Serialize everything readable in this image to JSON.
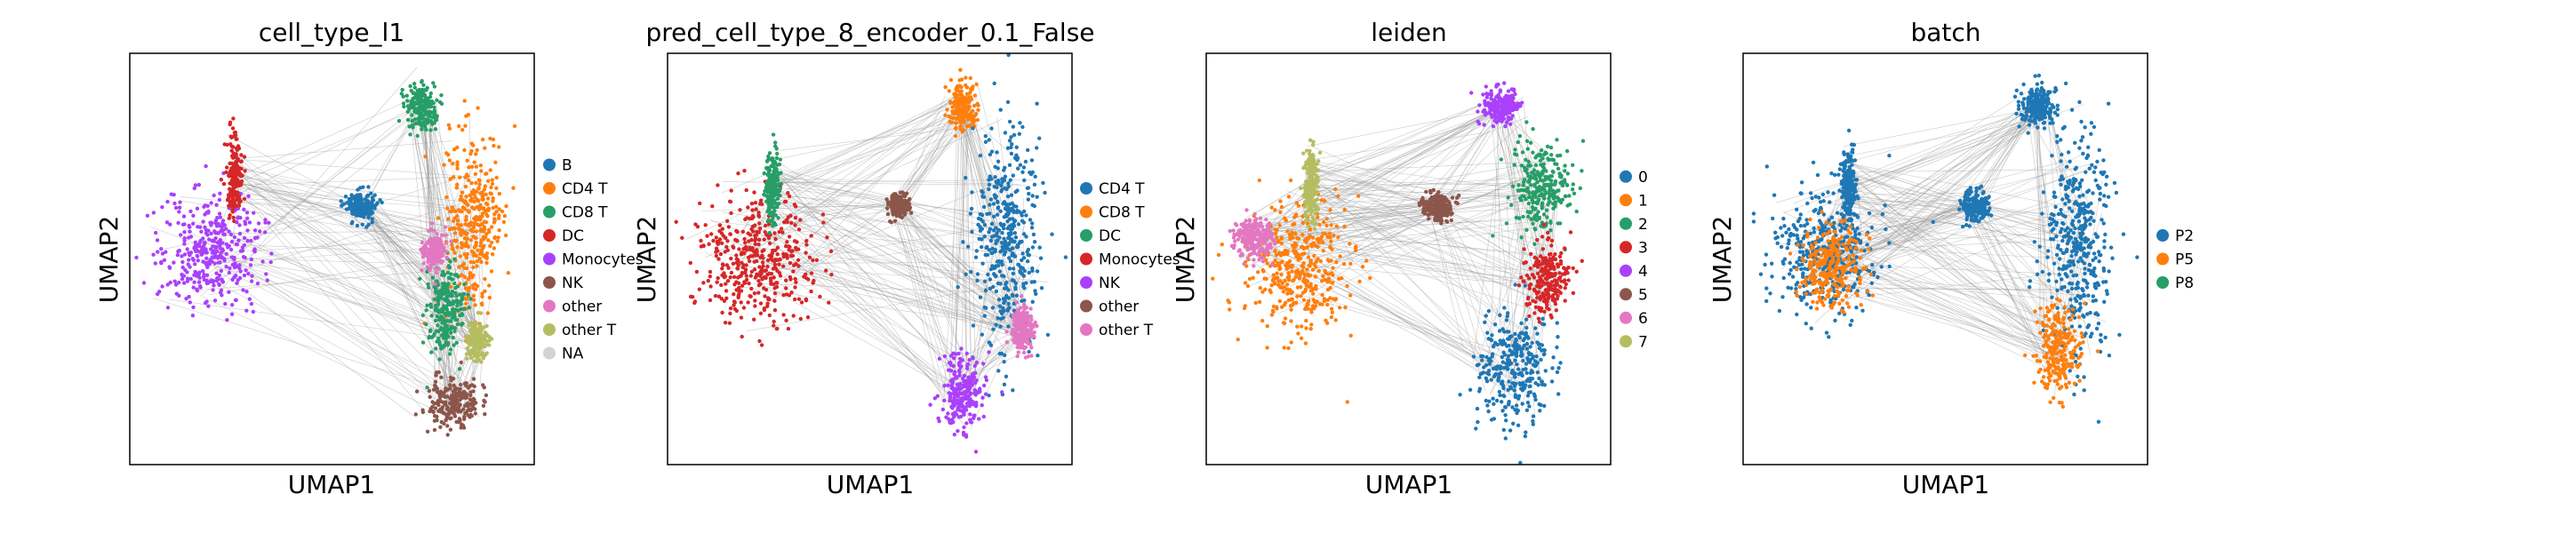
{
  "figure": {
    "description_free": true
  },
  "chart_data": [
    {
      "type": "scatter",
      "title": "cell_type_l1",
      "xlabel": "UMAP1",
      "ylabel": "UMAP2",
      "legend": [
        "B",
        "CD4 T",
        "CD8 T",
        "DC",
        "Monocytes",
        "NK",
        "other",
        "other T",
        "NA"
      ],
      "colors": [
        "#1f77b4",
        "#ff7f0e",
        "#279e68",
        "#d62728",
        "#aa40fc",
        "#8c564b",
        "#e377c2",
        "#b5bd61",
        "#d3d3d3"
      ],
      "legend_placement": "right",
      "grid": false,
      "axis_ticks": false,
      "clusters": [
        {
          "group": 4,
          "cx": 0.2,
          "cy": 0.48,
          "rx": 0.14,
          "ry": 0.16
        },
        {
          "group": 3,
          "cx": 0.26,
          "cy": 0.3,
          "rx": 0.02,
          "ry": 0.1
        },
        {
          "group": 0,
          "cx": 0.57,
          "cy": 0.37,
          "rx": 0.04,
          "ry": 0.04
        },
        {
          "group": 2,
          "cx": 0.72,
          "cy": 0.13,
          "rx": 0.04,
          "ry": 0.06
        },
        {
          "group": 1,
          "cx": 0.85,
          "cy": 0.42,
          "rx": 0.08,
          "ry": 0.25
        },
        {
          "group": 2,
          "cx": 0.78,
          "cy": 0.62,
          "rx": 0.05,
          "ry": 0.12
        },
        {
          "group": 6,
          "cx": 0.75,
          "cy": 0.48,
          "rx": 0.03,
          "ry": 0.05
        },
        {
          "group": 7,
          "cx": 0.86,
          "cy": 0.7,
          "rx": 0.03,
          "ry": 0.05
        },
        {
          "group": 5,
          "cx": 0.8,
          "cy": 0.85,
          "rx": 0.07,
          "ry": 0.07
        }
      ]
    },
    {
      "type": "scatter",
      "title": "pred_cell_type_8_encoder_0.1_False",
      "xlabel": "UMAP1",
      "ylabel": "UMAP2",
      "legend": [
        "CD4 T",
        "CD8 T",
        "DC",
        "Monocytes",
        "NK",
        "other",
        "other T"
      ],
      "colors": [
        "#1f77b4",
        "#ff7f0e",
        "#279e68",
        "#d62728",
        "#aa40fc",
        "#8c564b",
        "#e377c2"
      ],
      "legend_placement": "right",
      "grid": false,
      "axis_ticks": false,
      "clusters": [
        {
          "group": 3,
          "cx": 0.22,
          "cy": 0.5,
          "rx": 0.16,
          "ry": 0.17
        },
        {
          "group": 2,
          "cx": 0.26,
          "cy": 0.33,
          "rx": 0.02,
          "ry": 0.1
        },
        {
          "group": 5,
          "cx": 0.57,
          "cy": 0.37,
          "rx": 0.03,
          "ry": 0.03
        },
        {
          "group": 1,
          "cx": 0.73,
          "cy": 0.13,
          "rx": 0.04,
          "ry": 0.06
        },
        {
          "group": 0,
          "cx": 0.84,
          "cy": 0.45,
          "rx": 0.09,
          "ry": 0.3
        },
        {
          "group": 4,
          "cx": 0.73,
          "cy": 0.82,
          "rx": 0.06,
          "ry": 0.1
        },
        {
          "group": 6,
          "cx": 0.88,
          "cy": 0.67,
          "rx": 0.03,
          "ry": 0.06
        }
      ]
    },
    {
      "type": "scatter",
      "title": "leiden",
      "xlabel": "UMAP1",
      "ylabel": "UMAP2",
      "legend": [
        "0",
        "1",
        "2",
        "3",
        "4",
        "5",
        "6",
        "7"
      ],
      "colors": [
        "#1f77b4",
        "#ff7f0e",
        "#279e68",
        "#d62728",
        "#aa40fc",
        "#8c564b",
        "#e377c2",
        "#b5bd61"
      ],
      "legend_placement": "right",
      "grid": false,
      "axis_ticks": false,
      "clusters": [
        {
          "group": 1,
          "cx": 0.22,
          "cy": 0.52,
          "rx": 0.15,
          "ry": 0.17
        },
        {
          "group": 6,
          "cx": 0.12,
          "cy": 0.45,
          "rx": 0.05,
          "ry": 0.06
        },
        {
          "group": 7,
          "cx": 0.26,
          "cy": 0.32,
          "rx": 0.02,
          "ry": 0.1
        },
        {
          "group": 5,
          "cx": 0.57,
          "cy": 0.37,
          "rx": 0.04,
          "ry": 0.04
        },
        {
          "group": 4,
          "cx": 0.73,
          "cy": 0.13,
          "rx": 0.05,
          "ry": 0.05
        },
        {
          "group": 2,
          "cx": 0.83,
          "cy": 0.33,
          "rx": 0.08,
          "ry": 0.12
        },
        {
          "group": 3,
          "cx": 0.84,
          "cy": 0.55,
          "rx": 0.06,
          "ry": 0.1
        },
        {
          "group": 0,
          "cx": 0.76,
          "cy": 0.77,
          "rx": 0.1,
          "ry": 0.15
        }
      ]
    },
    {
      "type": "scatter",
      "title": "batch",
      "xlabel": "UMAP1",
      "ylabel": "UMAP2",
      "legend": [
        "P2",
        "P5",
        "P8"
      ],
      "colors": [
        "#1f77b4",
        "#ff7f0e",
        "#279e68"
      ],
      "legend_placement": "right",
      "grid": false,
      "axis_ticks": false,
      "clusters": [
        {
          "group": 0,
          "cx": 0.2,
          "cy": 0.48,
          "rx": 0.14,
          "ry": 0.17
        },
        {
          "group": 1,
          "cx": 0.22,
          "cy": 0.52,
          "rx": 0.09,
          "ry": 0.11
        },
        {
          "group": 0,
          "cx": 0.26,
          "cy": 0.32,
          "rx": 0.02,
          "ry": 0.1
        },
        {
          "group": 0,
          "cx": 0.57,
          "cy": 0.37,
          "rx": 0.04,
          "ry": 0.04
        },
        {
          "group": 0,
          "cx": 0.73,
          "cy": 0.13,
          "rx": 0.05,
          "ry": 0.05
        },
        {
          "group": 0,
          "cx": 0.83,
          "cy": 0.45,
          "rx": 0.09,
          "ry": 0.3
        },
        {
          "group": 1,
          "cx": 0.78,
          "cy": 0.72,
          "rx": 0.06,
          "ry": 0.12
        }
      ]
    }
  ]
}
